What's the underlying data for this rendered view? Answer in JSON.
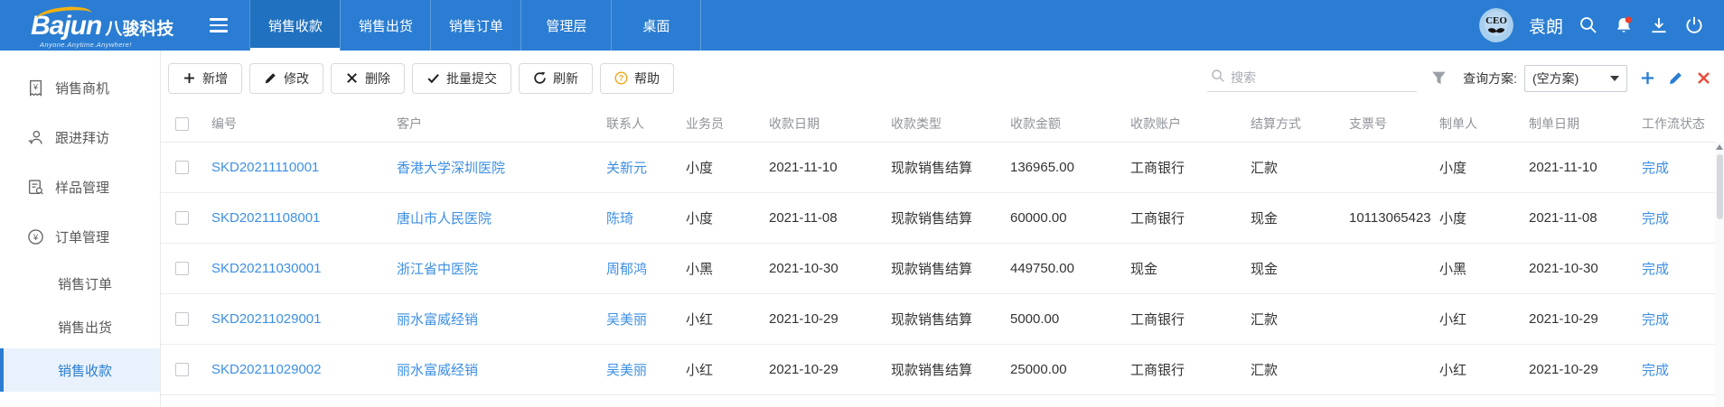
{
  "topbar": {
    "logo": {
      "brand": "Bajun",
      "brand_cn": "八骏科技",
      "tagline": "Anyone.Anytime.Anywhere!"
    },
    "tabs": [
      {
        "label": "销售收款",
        "active": true
      },
      {
        "label": "销售出货",
        "active": false
      },
      {
        "label": "销售订单",
        "active": false
      },
      {
        "label": "管理层",
        "active": false
      },
      {
        "label": "桌面",
        "active": false
      }
    ],
    "user": {
      "name": "袁朗",
      "avatar_text": "CEO"
    },
    "action_icons": [
      {
        "icon": "search-icon"
      },
      {
        "icon": "bell-icon",
        "badge": true
      },
      {
        "icon": "download-icon"
      },
      {
        "icon": "power-icon"
      }
    ]
  },
  "sidebar": {
    "items": [
      {
        "label": "销售商机",
        "icon": "receipt-icon",
        "sub": false,
        "active": false
      },
      {
        "label": "跟进拜访",
        "icon": "person-icon",
        "sub": false,
        "active": false
      },
      {
        "label": "样品管理",
        "icon": "sample-icon",
        "sub": false,
        "active": false
      },
      {
        "label": "订单管理",
        "icon": "order-icon",
        "sub": false,
        "active": false
      },
      {
        "label": "销售订单",
        "sub": true,
        "active": false
      },
      {
        "label": "销售出货",
        "sub": true,
        "active": false
      },
      {
        "label": "销售收款",
        "sub": true,
        "active": true
      }
    ]
  },
  "toolbar": {
    "buttons": [
      {
        "label": "新增",
        "icon": "plus-icon"
      },
      {
        "label": "修改",
        "icon": "pencil-icon"
      },
      {
        "label": "删除",
        "icon": "x-icon"
      },
      {
        "label": "批量提交",
        "icon": "check-icon"
      },
      {
        "label": "刷新",
        "icon": "refresh-icon"
      },
      {
        "label": "帮助",
        "icon": "question-icon"
      }
    ],
    "search_placeholder": "搜索",
    "query_label": "查询方案:",
    "query_value": "(空方案)"
  },
  "table": {
    "columns": [
      {
        "key": "doc-no",
        "label": "编号",
        "link": true
      },
      {
        "key": "customer",
        "label": "客户",
        "link": true
      },
      {
        "key": "contact",
        "label": "联系人",
        "link": true
      },
      {
        "key": "salesperson",
        "label": "业务员",
        "link": false
      },
      {
        "key": "receipt-date",
        "label": "收款日期",
        "link": false
      },
      {
        "key": "receipt-type",
        "label": "收款类型",
        "link": false
      },
      {
        "key": "amount",
        "label": "收款金额",
        "link": false
      },
      {
        "key": "account",
        "label": "收款账户",
        "link": false
      },
      {
        "key": "settlement-method",
        "label": "结算方式",
        "link": false
      },
      {
        "key": "cheque-no",
        "label": "支票号",
        "link": false
      },
      {
        "key": "creator",
        "label": "制单人",
        "link": false
      },
      {
        "key": "create-date",
        "label": "制单日期",
        "link": false
      },
      {
        "key": "workflow-status",
        "label": "工作流状态",
        "link": true
      }
    ],
    "rows": [
      [
        "SKD20211110001",
        "香港大学深圳医院",
        "关新元",
        "小度",
        "2021-11-10",
        "现款销售结算",
        "136965.00",
        "工商银行",
        "汇款",
        "",
        "小度",
        "2021-11-10",
        "完成"
      ],
      [
        "SKD20211108001",
        "唐山市人民医院",
        "陈琦",
        "小度",
        "2021-11-08",
        "现款销售结算",
        "60000.00",
        "工商银行",
        "现金",
        "10113065423",
        "小度",
        "2021-11-08",
        "完成"
      ],
      [
        "SKD20211030001",
        "浙江省中医院",
        "周郁鸿",
        "小黑",
        "2021-10-30",
        "现款销售结算",
        "449750.00",
        "现金",
        "现金",
        "",
        "小黑",
        "2021-10-30",
        "完成"
      ],
      [
        "SKD20211029001",
        "丽水富威经销",
        "吴美丽",
        "小红",
        "2021-10-29",
        "现款销售结算",
        "5000.00",
        "工商银行",
        "汇款",
        "",
        "小红",
        "2021-10-29",
        "完成"
      ],
      [
        "SKD20211029002",
        "丽水富威经销",
        "吴美丽",
        "小红",
        "2021-10-29",
        "现款销售结算",
        "25000.00",
        "工商银行",
        "汇款",
        "",
        "小红",
        "2021-10-29",
        "完成"
      ]
    ]
  },
  "colors": {
    "topbar_blue": "#2a7dd2",
    "active_tab_blue": "#2071bf",
    "link_blue": "#3d8fe4",
    "sidebar_active_bg": "#e9f2fc",
    "help_orange": "#f0a71c",
    "badge_red": "#ee3f2c",
    "delete_red": "#e84c3d"
  }
}
